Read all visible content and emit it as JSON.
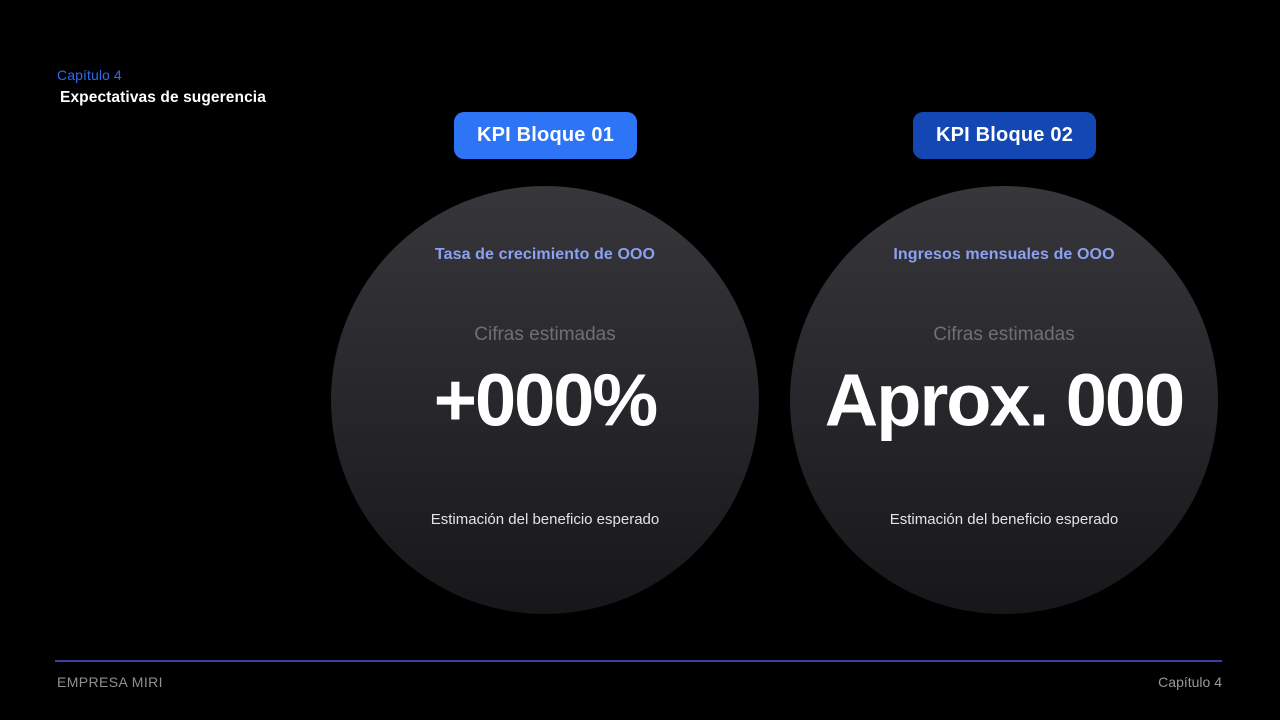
{
  "header": {
    "chapter": "Capítulo 4",
    "title": "Expectativas de sugerencia"
  },
  "kpi_blocks": [
    {
      "button_label": "KPI Bloque 01",
      "button_color": "#2e74f6",
      "metric_title": "Tasa de crecimiento de OOO",
      "subtitle": "Cifras estimadas",
      "value": "+000%",
      "caption": "Estimación del beneficio esperado"
    },
    {
      "button_label": "KPI Bloque 02",
      "button_color": "#1247b4",
      "metric_title": "Ingresos mensuales de OOO",
      "subtitle": "Cifras estimadas",
      "value": "Aprox. 000",
      "caption": "Estimación del beneficio esperado"
    }
  ],
  "footer": {
    "company": "EMPRESA MIRI",
    "chapter": "Capítulo 4"
  },
  "colors": {
    "background": "#000000",
    "accent_blue": "#2e6bf0",
    "button_primary_blue": "#2e74f6",
    "button_dark_blue": "#1247b4",
    "metric_title_blue": "#8da1f2",
    "muted_gray": "#6f6f74",
    "circle_gradient_top": "#36363b",
    "circle_gradient_bottom": "#17171a",
    "footer_line": "#3c41a0",
    "footer_text": "#8f8f94"
  }
}
